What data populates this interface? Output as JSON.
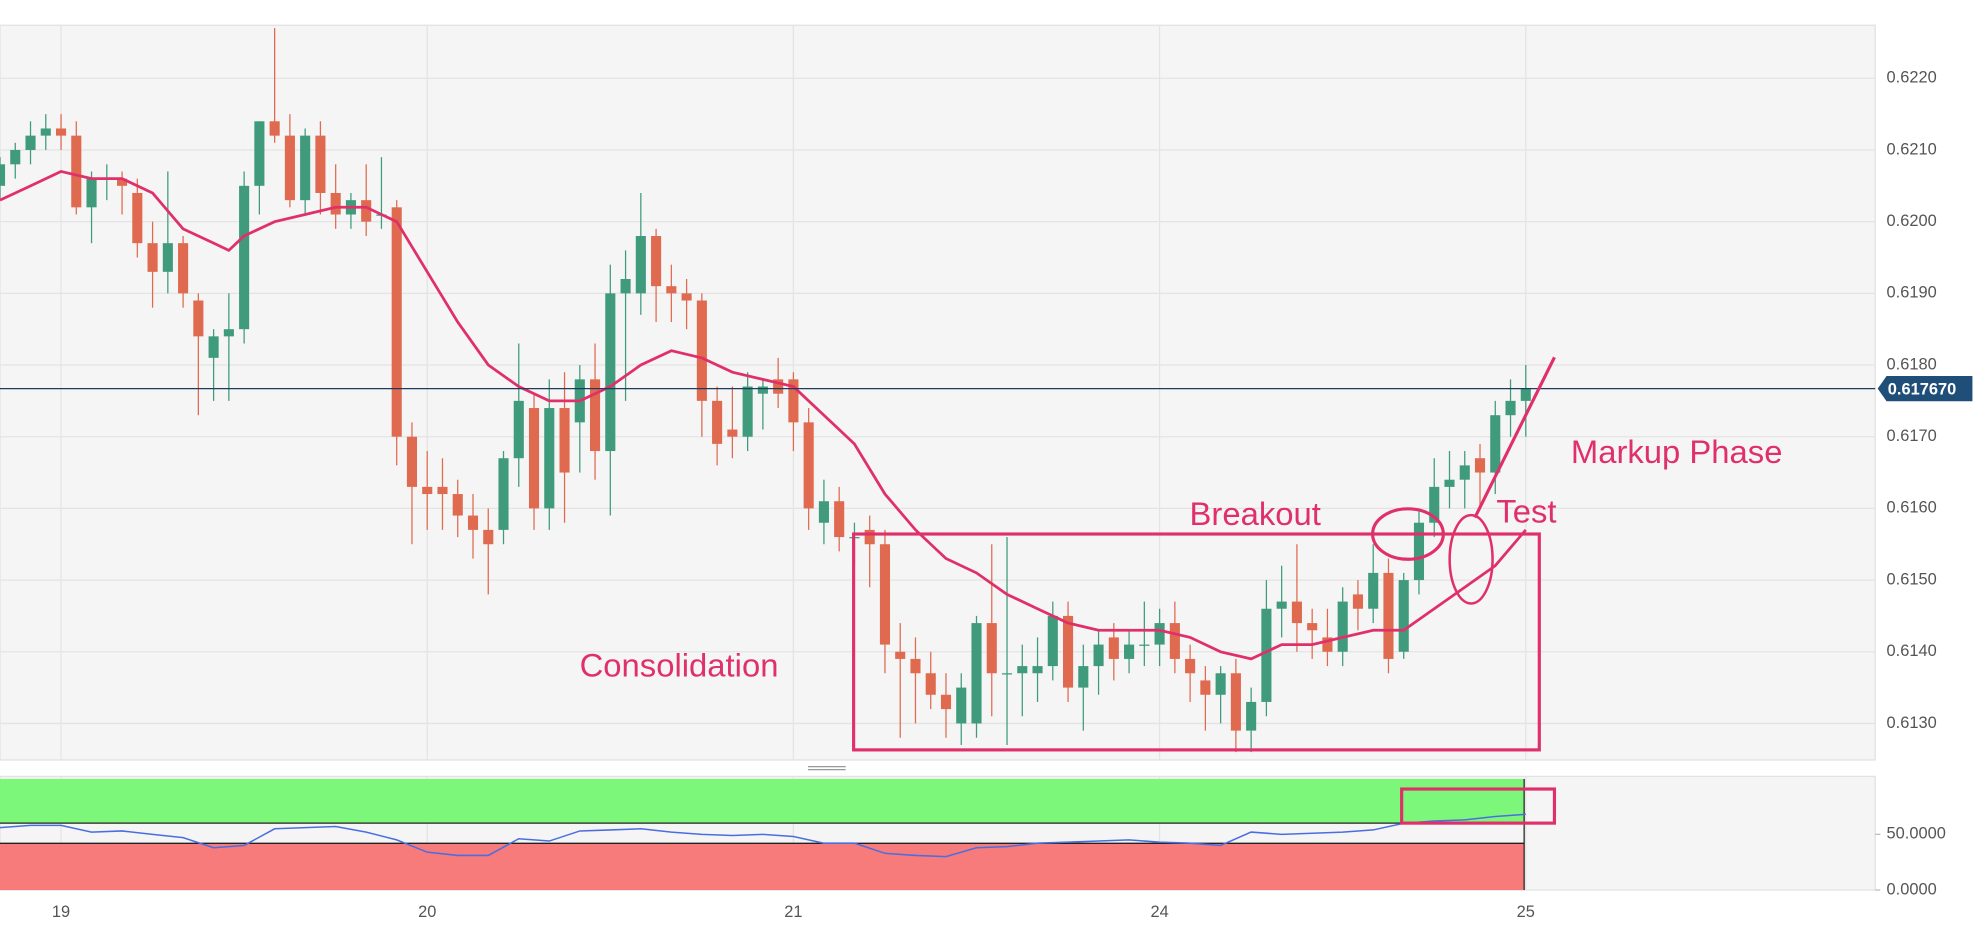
{
  "chart_data": {
    "type": "candlestick",
    "x": [
      0,
      1,
      2,
      3,
      4,
      5,
      6,
      7,
      8,
      9,
      10,
      11,
      12,
      13,
      14,
      15,
      16,
      17,
      18,
      19,
      20,
      21,
      22,
      23,
      24,
      25,
      26,
      27,
      28,
      29,
      30,
      31,
      32,
      33,
      34,
      35,
      36,
      37,
      38,
      39,
      40,
      41,
      42,
      43,
      44,
      45,
      46,
      47,
      48,
      49,
      50,
      51,
      52,
      53,
      54,
      55,
      56,
      57,
      58,
      59,
      60,
      61,
      62,
      63,
      64,
      65,
      66,
      67,
      68,
      69,
      70,
      71,
      72,
      73,
      74,
      75,
      76,
      77,
      78,
      79,
      80,
      81,
      82,
      83,
      84,
      85,
      86,
      87,
      88,
      89,
      90,
      91,
      92,
      93,
      94,
      95,
      96,
      97,
      98,
      99,
      100
    ],
    "ohlc": [
      [
        0.6205,
        0.6209,
        0.6203,
        0.6208
      ],
      [
        0.6208,
        0.6211,
        0.6206,
        0.621
      ],
      [
        0.621,
        0.6214,
        0.6208,
        0.6212
      ],
      [
        0.6212,
        0.6215,
        0.621,
        0.6213
      ],
      [
        0.6213,
        0.6215,
        0.621,
        0.6212
      ],
      [
        0.6212,
        0.6214,
        0.6201,
        0.6202
      ],
      [
        0.6202,
        0.6207,
        0.6197,
        0.6206
      ],
      [
        0.6206,
        0.6208,
        0.6203,
        0.6206
      ],
      [
        0.6206,
        0.6207,
        0.6201,
        0.6205
      ],
      [
        0.6204,
        0.6206,
        0.6195,
        0.6197
      ],
      [
        0.6197,
        0.62,
        0.6188,
        0.6193
      ],
      [
        0.6193,
        0.6207,
        0.619,
        0.6197
      ],
      [
        0.6197,
        0.6198,
        0.6188,
        0.619
      ],
      [
        0.6189,
        0.619,
        0.6173,
        0.6184
      ],
      [
        0.6181,
        0.6185,
        0.6175,
        0.6184
      ],
      [
        0.6184,
        0.619,
        0.6175,
        0.6185
      ],
      [
        0.6185,
        0.6207,
        0.6183,
        0.6205
      ],
      [
        0.6205,
        0.6214,
        0.6201,
        0.6214
      ],
      [
        0.6214,
        0.6227,
        0.6211,
        0.6212
      ],
      [
        0.6212,
        0.6215,
        0.6202,
        0.6203
      ],
      [
        0.6203,
        0.6213,
        0.6201,
        0.6212
      ],
      [
        0.6212,
        0.6214,
        0.6201,
        0.6204
      ],
      [
        0.6204,
        0.6208,
        0.6199,
        0.6201
      ],
      [
        0.6201,
        0.6204,
        0.6199,
        0.6203
      ],
      [
        0.6203,
        0.6208,
        0.6198,
        0.62
      ],
      [
        0.6201,
        0.6209,
        0.6199,
        0.6201
      ],
      [
        0.6202,
        0.6203,
        0.6166,
        0.617
      ],
      [
        0.617,
        0.6172,
        0.6155,
        0.6163
      ],
      [
        0.6163,
        0.6168,
        0.6157,
        0.6162
      ],
      [
        0.6163,
        0.6167,
        0.6157,
        0.6162
      ],
      [
        0.6162,
        0.6164,
        0.6156,
        0.6159
      ],
      [
        0.6159,
        0.6162,
        0.6153,
        0.6157
      ],
      [
        0.6157,
        0.616,
        0.6148,
        0.6155
      ],
      [
        0.6157,
        0.6168,
        0.6155,
        0.6167
      ],
      [
        0.6167,
        0.6183,
        0.6163,
        0.6175
      ],
      [
        0.6174,
        0.6176,
        0.6157,
        0.616
      ],
      [
        0.616,
        0.6178,
        0.6157,
        0.6174
      ],
      [
        0.6174,
        0.6179,
        0.6158,
        0.6165
      ],
      [
        0.6172,
        0.618,
        0.6165,
        0.6178
      ],
      [
        0.6178,
        0.6183,
        0.6164,
        0.6168
      ],
      [
        0.6168,
        0.6194,
        0.6159,
        0.619
      ],
      [
        0.619,
        0.6196,
        0.6175,
        0.6192
      ],
      [
        0.619,
        0.6204,
        0.6187,
        0.6198
      ],
      [
        0.6198,
        0.6199,
        0.6186,
        0.6191
      ],
      [
        0.6191,
        0.6194,
        0.6186,
        0.619
      ],
      [
        0.619,
        0.6192,
        0.6185,
        0.6189
      ],
      [
        0.6189,
        0.619,
        0.617,
        0.6175
      ],
      [
        0.6175,
        0.6177,
        0.6166,
        0.6169
      ],
      [
        0.6171,
        0.6177,
        0.6167,
        0.617
      ],
      [
        0.617,
        0.6179,
        0.6168,
        0.6177
      ],
      [
        0.6176,
        0.6178,
        0.6171,
        0.6177
      ],
      [
        0.6178,
        0.6181,
        0.6174,
        0.6176
      ],
      [
        0.6178,
        0.6179,
        0.6168,
        0.6172
      ],
      [
        0.6172,
        0.6174,
        0.6157,
        0.616
      ],
      [
        0.6158,
        0.6164,
        0.6155,
        0.6161
      ],
      [
        0.6161,
        0.6163,
        0.6154,
        0.6156
      ],
      [
        0.6156,
        0.6158,
        0.6152,
        0.6156
      ],
      [
        0.6157,
        0.6159,
        0.6149,
        0.6155
      ],
      [
        0.6155,
        0.6157,
        0.6137,
        0.6141
      ],
      [
        0.614,
        0.6144,
        0.6128,
        0.6139
      ],
      [
        0.6139,
        0.6142,
        0.613,
        0.6137
      ],
      [
        0.6137,
        0.614,
        0.6132,
        0.6134
      ],
      [
        0.6134,
        0.6137,
        0.6128,
        0.6132
      ],
      [
        0.613,
        0.6137,
        0.6127,
        0.6135
      ],
      [
        0.613,
        0.6145,
        0.6128,
        0.6144
      ],
      [
        0.6144,
        0.6155,
        0.6131,
        0.6137
      ],
      [
        0.6137,
        0.6156,
        0.6127,
        0.6137
      ],
      [
        0.6137,
        0.6141,
        0.6131,
        0.6138
      ],
      [
        0.6137,
        0.6142,
        0.6133,
        0.6138
      ],
      [
        0.6138,
        0.6147,
        0.6136,
        0.6145
      ],
      [
        0.6145,
        0.6147,
        0.6133,
        0.6135
      ],
      [
        0.6135,
        0.6141,
        0.6129,
        0.6138
      ],
      [
        0.6138,
        0.6143,
        0.6134,
        0.6141
      ],
      [
        0.6142,
        0.6144,
        0.6136,
        0.6139
      ],
      [
        0.6139,
        0.6143,
        0.6137,
        0.6141
      ],
      [
        0.6141,
        0.6147,
        0.6138,
        0.6141
      ],
      [
        0.6141,
        0.6146,
        0.6138,
        0.6144
      ],
      [
        0.6144,
        0.6147,
        0.6137,
        0.6139
      ],
      [
        0.6139,
        0.6141,
        0.6133,
        0.6137
      ],
      [
        0.6136,
        0.6138,
        0.6129,
        0.6134
      ],
      [
        0.6134,
        0.6138,
        0.613,
        0.6137
      ],
      [
        0.6137,
        0.6139,
        0.6126,
        0.6129
      ],
      [
        0.6129,
        0.6135,
        0.6126,
        0.6133
      ],
      [
        0.6133,
        0.615,
        0.6131,
        0.6146
      ],
      [
        0.6146,
        0.6152,
        0.6142,
        0.6147
      ],
      [
        0.6147,
        0.6155,
        0.614,
        0.6144
      ],
      [
        0.6144,
        0.6146,
        0.6139,
        0.6143
      ],
      [
        0.6142,
        0.6146,
        0.6138,
        0.614
      ],
      [
        0.614,
        0.6149,
        0.6138,
        0.6147
      ],
      [
        0.6148,
        0.615,
        0.6143,
        0.6146
      ],
      [
        0.6146,
        0.6155,
        0.6144,
        0.6151
      ],
      [
        0.6151,
        0.6153,
        0.6137,
        0.6139
      ],
      [
        0.614,
        0.6151,
        0.6139,
        0.615
      ],
      [
        0.615,
        0.616,
        0.6148,
        0.6158
      ],
      [
        0.6158,
        0.6167,
        0.6156,
        0.6163
      ],
      [
        0.6163,
        0.6168,
        0.616,
        0.6164
      ],
      [
        0.6164,
        0.6168,
        0.616,
        0.6166
      ],
      [
        0.6167,
        0.6169,
        0.616,
        0.6165
      ],
      [
        0.6165,
        0.6175,
        0.6162,
        0.6173
      ],
      [
        0.6173,
        0.6178,
        0.617,
        0.6175
      ],
      [
        0.6175,
        0.618,
        0.617,
        0.61767
      ]
    ],
    "up_color": "#3f9b7c",
    "down_color": "#e06a4f",
    "xlim": [
      0,
      122.9
    ],
    "ylim": [
      0.61249,
      0.62274
    ],
    "xticks": [
      {
        "value": 4,
        "label": "19"
      },
      {
        "value": 28,
        "label": "20"
      },
      {
        "value": 52,
        "label": "21"
      },
      {
        "value": 76,
        "label": "24"
      },
      {
        "value": 100,
        "label": "25"
      }
    ],
    "yticks": [
      {
        "value": 0.613,
        "label": "0.6130"
      },
      {
        "value": 0.614,
        "label": "0.6140"
      },
      {
        "value": 0.615,
        "label": "0.6150"
      },
      {
        "value": 0.616,
        "label": "0.6160"
      },
      {
        "value": 0.617,
        "label": "0.6170"
      },
      {
        "value": 0.618,
        "label": "0.6180"
      },
      {
        "value": 0.619,
        "label": "0.6190"
      },
      {
        "value": 0.62,
        "label": "0.6200"
      },
      {
        "value": 0.621,
        "label": "0.6210"
      },
      {
        "value": 0.622,
        "label": "0.6220"
      }
    ],
    "grid": true,
    "moving_average": {
      "color": "#e0306a",
      "x": [
        0,
        2,
        4,
        6,
        8,
        10,
        12,
        14,
        15,
        16,
        18,
        20,
        22,
        24,
        26,
        28,
        30,
        32,
        34,
        36,
        38,
        40,
        42,
        44,
        46,
        48,
        50,
        52,
        54,
        56,
        58,
        60,
        62,
        64,
        66,
        68,
        70,
        72,
        74,
        76,
        78,
        80,
        82,
        84,
        86,
        88,
        90,
        92,
        94,
        96,
        98,
        100
      ],
      "values": [
        0.6203,
        0.6205,
        0.6207,
        0.6206,
        0.6206,
        0.6204,
        0.6199,
        0.6197,
        0.6196,
        0.6198,
        0.62,
        0.6201,
        0.6202,
        0.6202,
        0.62,
        0.6193,
        0.6186,
        0.618,
        0.6177,
        0.6175,
        0.6175,
        0.6177,
        0.618,
        0.6182,
        0.6181,
        0.6179,
        0.6178,
        0.6177,
        0.6173,
        0.6169,
        0.6162,
        0.6157,
        0.6153,
        0.6151,
        0.6148,
        0.6146,
        0.6144,
        0.6143,
        0.6143,
        0.6143,
        0.6142,
        0.614,
        0.6139,
        0.6141,
        0.6141,
        0.6142,
        0.6143,
        0.6143,
        0.6146,
        0.6149,
        0.6152,
        0.6157
      ]
    },
    "current_price": {
      "value": 0.61767,
      "label": "0.617670"
    },
    "annotations": [
      "Consolidation",
      "Breakout",
      "Test",
      "Markup Phase"
    ],
    "indicator": {
      "type": "line",
      "color": "#4a6ee0",
      "x": [
        0,
        2,
        4,
        6,
        8,
        10,
        12,
        14,
        16,
        18,
        20,
        22,
        24,
        26,
        28,
        30,
        32,
        34,
        36,
        38,
        40,
        42,
        44,
        46,
        48,
        50,
        52,
        54,
        56,
        58,
        60,
        62,
        64,
        66,
        68,
        70,
        72,
        74,
        76,
        78,
        80,
        82,
        84,
        86,
        88,
        90,
        92,
        94,
        96,
        98,
        100
      ],
      "values": [
        56,
        58,
        58,
        52,
        53,
        50,
        47,
        38,
        40,
        55,
        56,
        57,
        52,
        45,
        34,
        31,
        31,
        46,
        44,
        53,
        54,
        55,
        52,
        50,
        49,
        50,
        48,
        42,
        42,
        33,
        31,
        30,
        38,
        39,
        42,
        43,
        44,
        45,
        43,
        42,
        40,
        52,
        50,
        51,
        52,
        54,
        60,
        62,
        63,
        66,
        68
      ],
      "ylim": [
        0,
        102
      ],
      "yticks": [
        {
          "value": 50,
          "label": "50.0000"
        },
        {
          "value": 0,
          "label": "0.0000"
        }
      ]
    }
  }
}
